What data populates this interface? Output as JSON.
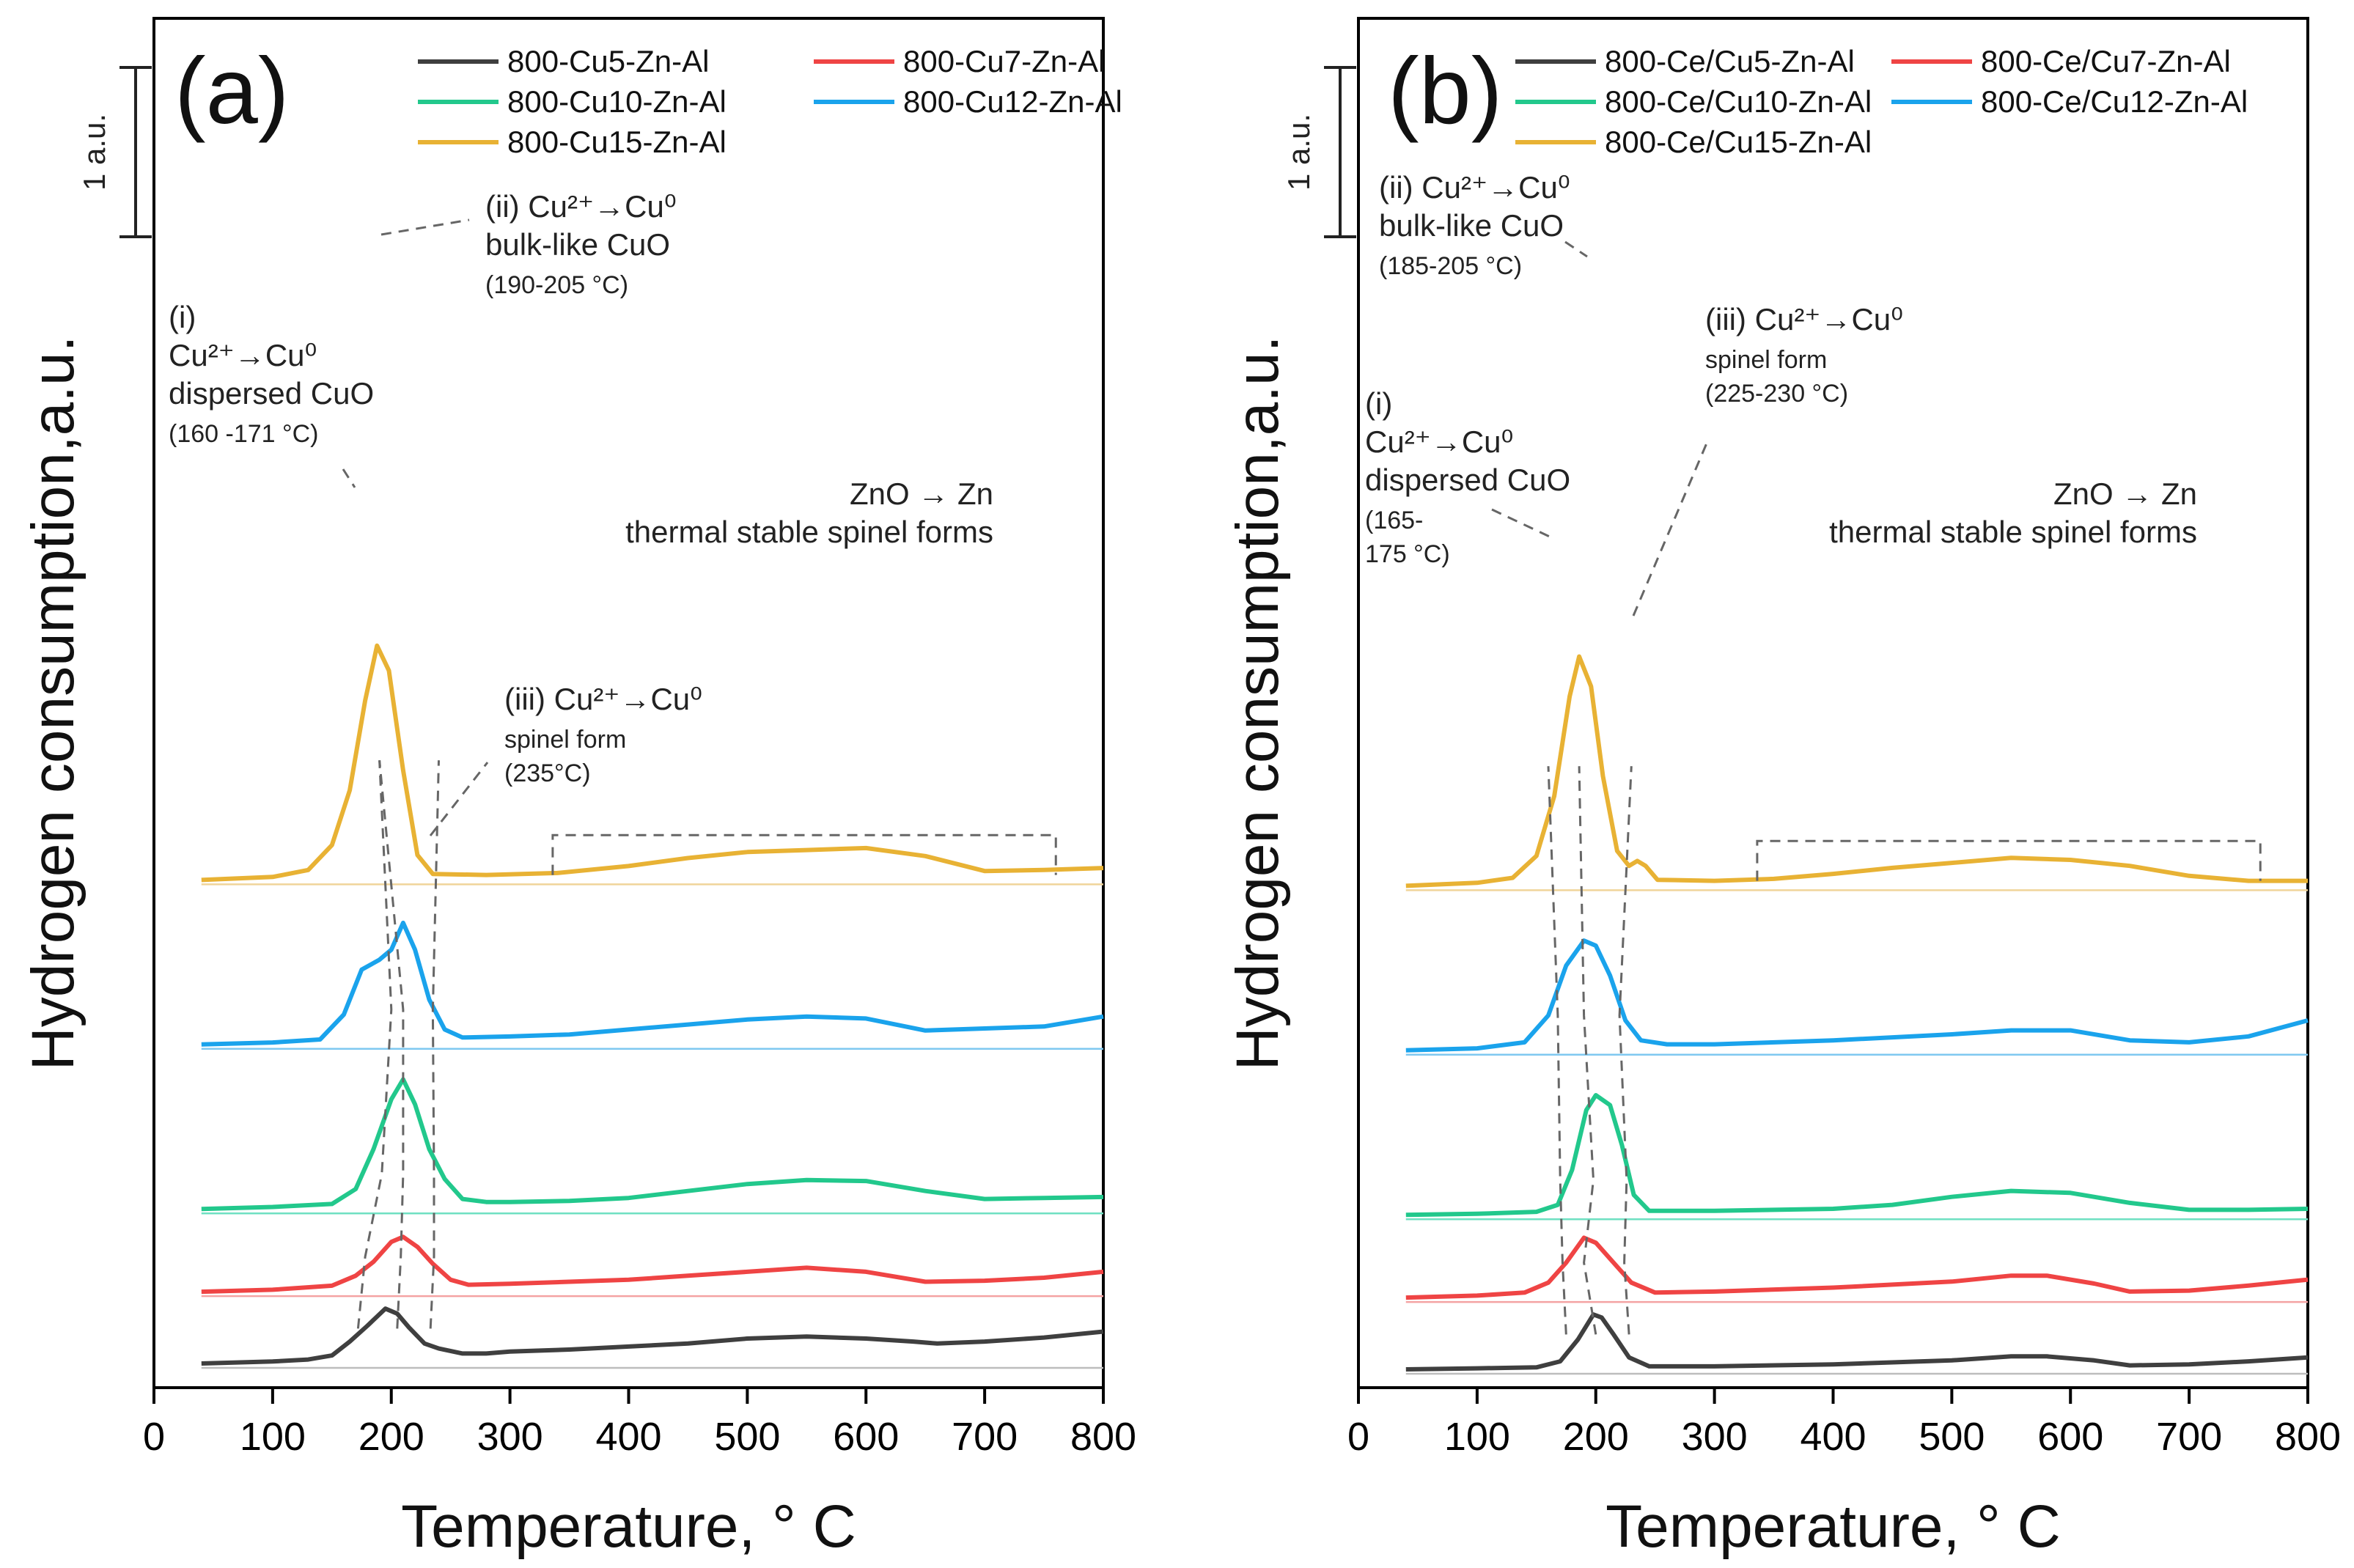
{
  "chart_data": [
    {
      "type": "line",
      "panel_label": "(a)",
      "xlabel": "Temperature, ° C",
      "ylabel": "Hydrogen consumption,a.u.",
      "xlim": [
        0,
        800
      ],
      "xticks": [
        0,
        100,
        200,
        300,
        400,
        500,
        600,
        700,
        800
      ],
      "scale_bar": "1 a.u.",
      "series": [
        {
          "name": "800-Cu5-Zn-Al",
          "color": "#3f3f3f",
          "baseline_color": "#bdbdbd",
          "offset": 0.0,
          "ybase": 0.0,
          "points": [
            [
              40,
              0
            ],
            [
              100,
              0.02
            ],
            [
              130,
              0.04
            ],
            [
              150,
              0.08
            ],
            [
              165,
              0.22
            ],
            [
              180,
              0.38
            ],
            [
              195,
              0.55
            ],
            [
              205,
              0.5
            ],
            [
              215,
              0.36
            ],
            [
              228,
              0.2
            ],
            [
              240,
              0.15
            ],
            [
              260,
              0.1
            ],
            [
              280,
              0.1
            ],
            [
              300,
              0.12
            ],
            [
              350,
              0.14
            ],
            [
              400,
              0.17
            ],
            [
              450,
              0.2
            ],
            [
              500,
              0.25
            ],
            [
              550,
              0.27
            ],
            [
              600,
              0.25
            ],
            [
              640,
              0.22
            ],
            [
              660,
              0.2
            ],
            [
              700,
              0.22
            ],
            [
              750,
              0.26
            ],
            [
              800,
              0.32
            ]
          ]
        },
        {
          "name": "800-Cu7-Zn-Al",
          "color": "#ef4444",
          "baseline_color": "#f4a3a3",
          "offset": 0.72,
          "ybase": 0.0,
          "points": [
            [
              40,
              0
            ],
            [
              100,
              0.02
            ],
            [
              150,
              0.06
            ],
            [
              170,
              0.16
            ],
            [
              185,
              0.3
            ],
            [
              200,
              0.5
            ],
            [
              210,
              0.55
            ],
            [
              222,
              0.45
            ],
            [
              235,
              0.28
            ],
            [
              250,
              0.12
            ],
            [
              265,
              0.07
            ],
            [
              300,
              0.08
            ],
            [
              350,
              0.1
            ],
            [
              400,
              0.12
            ],
            [
              450,
              0.16
            ],
            [
              500,
              0.2
            ],
            [
              550,
              0.24
            ],
            [
              600,
              0.2
            ],
            [
              650,
              0.1
            ],
            [
              700,
              0.11
            ],
            [
              750,
              0.14
            ],
            [
              800,
              0.2
            ]
          ]
        },
        {
          "name": "800-Cu10-Zn-Al",
          "color": "#22c88c",
          "baseline_color": "#6fe0c2",
          "offset": 1.55,
          "ybase": 0.0,
          "points": [
            [
              40,
              0
            ],
            [
              100,
              0.02
            ],
            [
              150,
              0.05
            ],
            [
              170,
              0.2
            ],
            [
              185,
              0.6
            ],
            [
              200,
              1.1
            ],
            [
              210,
              1.3
            ],
            [
              220,
              1.05
            ],
            [
              232,
              0.6
            ],
            [
              245,
              0.3
            ],
            [
              260,
              0.1
            ],
            [
              280,
              0.07
            ],
            [
              300,
              0.07
            ],
            [
              350,
              0.08
            ],
            [
              400,
              0.11
            ],
            [
              450,
              0.18
            ],
            [
              500,
              0.25
            ],
            [
              550,
              0.29
            ],
            [
              600,
              0.28
            ],
            [
              650,
              0.18
            ],
            [
              700,
              0.1
            ],
            [
              750,
              0.11
            ],
            [
              800,
              0.12
            ]
          ]
        },
        {
          "name": "800-Cu12-Zn-Al",
          "color": "#1aa3ec",
          "baseline_color": "#7fc8f0",
          "offset": 3.2,
          "ybase": 0.0,
          "points": [
            [
              40,
              0
            ],
            [
              100,
              0.02
            ],
            [
              140,
              0.05
            ],
            [
              160,
              0.3
            ],
            [
              175,
              0.75
            ],
            [
              190,
              0.85
            ],
            [
              200,
              0.95
            ],
            [
              210,
              1.22
            ],
            [
              220,
              0.95
            ],
            [
              232,
              0.45
            ],
            [
              245,
              0.15
            ],
            [
              260,
              0.07
            ],
            [
              300,
              0.08
            ],
            [
              350,
              0.1
            ],
            [
              400,
              0.15
            ],
            [
              450,
              0.2
            ],
            [
              500,
              0.25
            ],
            [
              550,
              0.28
            ],
            [
              600,
              0.26
            ],
            [
              650,
              0.14
            ],
            [
              700,
              0.16
            ],
            [
              750,
              0.18
            ],
            [
              800,
              0.28
            ]
          ]
        },
        {
          "name": "800-Cu15-Zn-Al",
          "color": "#e8b234",
          "baseline_color": "#f0d49a",
          "offset": 4.85,
          "ybase": 0.0,
          "points": [
            [
              40,
              0
            ],
            [
              100,
              0.03
            ],
            [
              130,
              0.1
            ],
            [
              150,
              0.35
            ],
            [
              165,
              0.9
            ],
            [
              178,
              1.8
            ],
            [
              188,
              2.35
            ],
            [
              198,
              2.1
            ],
            [
              210,
              1.1
            ],
            [
              222,
              0.25
            ],
            [
              235,
              0.06
            ],
            [
              280,
              0.05
            ],
            [
              340,
              0.07
            ],
            [
              400,
              0.14
            ],
            [
              450,
              0.22
            ],
            [
              500,
              0.28
            ],
            [
              550,
              0.3
            ],
            [
              600,
              0.32
            ],
            [
              650,
              0.24
            ],
            [
              700,
              0.09
            ],
            [
              750,
              0.1
            ],
            [
              800,
              0.12
            ]
          ]
        }
      ],
      "annotations": [
        {
          "id": "i",
          "lines": [
            "(i)",
            "Cu²⁺→Cu⁰",
            "dispersed CuO",
            "(160 -171 °C)"
          ]
        },
        {
          "id": "ii",
          "lines": [
            "(ii) Cu²⁺→Cu⁰",
            "bulk-like CuO",
            "(190-205 °C)"
          ]
        },
        {
          "id": "iii",
          "lines": [
            "(iii) Cu²⁺→Cu⁰",
            "spinel form",
            "(235°C)"
          ]
        },
        {
          "id": "zno",
          "lines": [
            "ZnO →  Zn",
            "thermal stable spinel forms"
          ]
        }
      ]
    },
    {
      "type": "line",
      "panel_label": "(b)",
      "xlabel": "Temperature, ° C",
      "ylabel": "Hydrogen consumption,a.u.",
      "xlim": [
        0,
        800
      ],
      "xticks": [
        0,
        100,
        200,
        300,
        400,
        500,
        600,
        700,
        800
      ],
      "scale_bar": "1 a.u.",
      "series": [
        {
          "name": "800-Ce/Cu5-Zn-Al",
          "color": "#3f3f3f",
          "baseline_color": "#bdbdbd",
          "offset": 0.0,
          "ybase": 0.0,
          "points": [
            [
              40,
              0
            ],
            [
              100,
              0.01
            ],
            [
              150,
              0.02
            ],
            [
              170,
              0.08
            ],
            [
              185,
              0.3
            ],
            [
              198,
              0.55
            ],
            [
              205,
              0.52
            ],
            [
              215,
              0.35
            ],
            [
              228,
              0.12
            ],
            [
              245,
              0.03
            ],
            [
              300,
              0.03
            ],
            [
              400,
              0.05
            ],
            [
              500,
              0.09
            ],
            [
              550,
              0.13
            ],
            [
              580,
              0.13
            ],
            [
              620,
              0.09
            ],
            [
              650,
              0.04
            ],
            [
              700,
              0.05
            ],
            [
              750,
              0.08
            ],
            [
              800,
              0.12
            ]
          ]
        },
        {
          "name": "800-Ce/Cu7-Zn-Al",
          "color": "#ef4444",
          "baseline_color": "#f4a3a3",
          "offset": 0.72,
          "ybase": 0.0,
          "points": [
            [
              40,
              0
            ],
            [
              100,
              0.02
            ],
            [
              140,
              0.05
            ],
            [
              160,
              0.15
            ],
            [
              175,
              0.35
            ],
            [
              190,
              0.6
            ],
            [
              200,
              0.55
            ],
            [
              215,
              0.35
            ],
            [
              230,
              0.15
            ],
            [
              250,
              0.05
            ],
            [
              300,
              0.06
            ],
            [
              400,
              0.1
            ],
            [
              500,
              0.16
            ],
            [
              550,
              0.22
            ],
            [
              580,
              0.22
            ],
            [
              620,
              0.14
            ],
            [
              650,
              0.06
            ],
            [
              700,
              0.07
            ],
            [
              750,
              0.12
            ],
            [
              800,
              0.18
            ]
          ]
        },
        {
          "name": "800-Ce/Cu10-Zn-Al",
          "color": "#22c88c",
          "baseline_color": "#6fe0c2",
          "offset": 1.55,
          "ybase": 0.0,
          "points": [
            [
              40,
              0
            ],
            [
              100,
              0.01
            ],
            [
              150,
              0.03
            ],
            [
              168,
              0.1
            ],
            [
              180,
              0.45
            ],
            [
              192,
              1.05
            ],
            [
              200,
              1.2
            ],
            [
              212,
              1.1
            ],
            [
              222,
              0.7
            ],
            [
              232,
              0.2
            ],
            [
              245,
              0.04
            ],
            [
              300,
              0.04
            ],
            [
              400,
              0.06
            ],
            [
              450,
              0.1
            ],
            [
              500,
              0.18
            ],
            [
              550,
              0.24
            ],
            [
              600,
              0.22
            ],
            [
              650,
              0.12
            ],
            [
              700,
              0.05
            ],
            [
              750,
              0.05
            ],
            [
              800,
              0.06
            ]
          ]
        },
        {
          "name": "800-Ce/Cu12-Zn-Al",
          "color": "#1aa3ec",
          "baseline_color": "#7fc8f0",
          "offset": 3.2,
          "ybase": 0.0,
          "points": [
            [
              40,
              0
            ],
            [
              100,
              0.02
            ],
            [
              140,
              0.08
            ],
            [
              160,
              0.35
            ],
            [
              175,
              0.85
            ],
            [
              190,
              1.1
            ],
            [
              200,
              1.05
            ],
            [
              212,
              0.75
            ],
            [
              225,
              0.3
            ],
            [
              238,
              0.1
            ],
            [
              260,
              0.06
            ],
            [
              300,
              0.06
            ],
            [
              400,
              0.1
            ],
            [
              500,
              0.16
            ],
            [
              550,
              0.2
            ],
            [
              600,
              0.2
            ],
            [
              650,
              0.1
            ],
            [
              700,
              0.08
            ],
            [
              750,
              0.14
            ],
            [
              800,
              0.3
            ]
          ]
        },
        {
          "name": "800-Ce/Cu15-Zn-Al",
          "color": "#e8b234",
          "baseline_color": "#f0d49a",
          "offset": 4.85,
          "ybase": 0.0,
          "points": [
            [
              40,
              0
            ],
            [
              100,
              0.03
            ],
            [
              130,
              0.08
            ],
            [
              150,
              0.3
            ],
            [
              165,
              0.9
            ],
            [
              178,
              1.9
            ],
            [
              186,
              2.3
            ],
            [
              196,
              2.0
            ],
            [
              206,
              1.1
            ],
            [
              218,
              0.35
            ],
            [
              228,
              0.2
            ],
            [
              235,
              0.25
            ],
            [
              242,
              0.2
            ],
            [
              252,
              0.06
            ],
            [
              300,
              0.05
            ],
            [
              350,
              0.07
            ],
            [
              400,
              0.12
            ],
            [
              450,
              0.18
            ],
            [
              500,
              0.23
            ],
            [
              550,
              0.28
            ],
            [
              600,
              0.26
            ],
            [
              650,
              0.2
            ],
            [
              700,
              0.1
            ],
            [
              750,
              0.05
            ],
            [
              800,
              0.05
            ]
          ]
        }
      ],
      "annotations": [
        {
          "id": "i",
          "lines": [
            "(i)",
            "Cu²⁺→Cu⁰",
            "dispersed CuO",
            "(165-",
            "175 °C)"
          ]
        },
        {
          "id": "ii",
          "lines": [
            "(ii) Cu²⁺→Cu⁰",
            "bulk-like CuO",
            "(185-205 °C)"
          ]
        },
        {
          "id": "iii",
          "lines": [
            "(iii) Cu²⁺→Cu⁰",
            "spinel form",
            "(225-230 °C)"
          ]
        },
        {
          "id": "zno",
          "lines": [
            "ZnO →  Zn",
            "thermal stable spinel forms"
          ]
        }
      ]
    }
  ]
}
